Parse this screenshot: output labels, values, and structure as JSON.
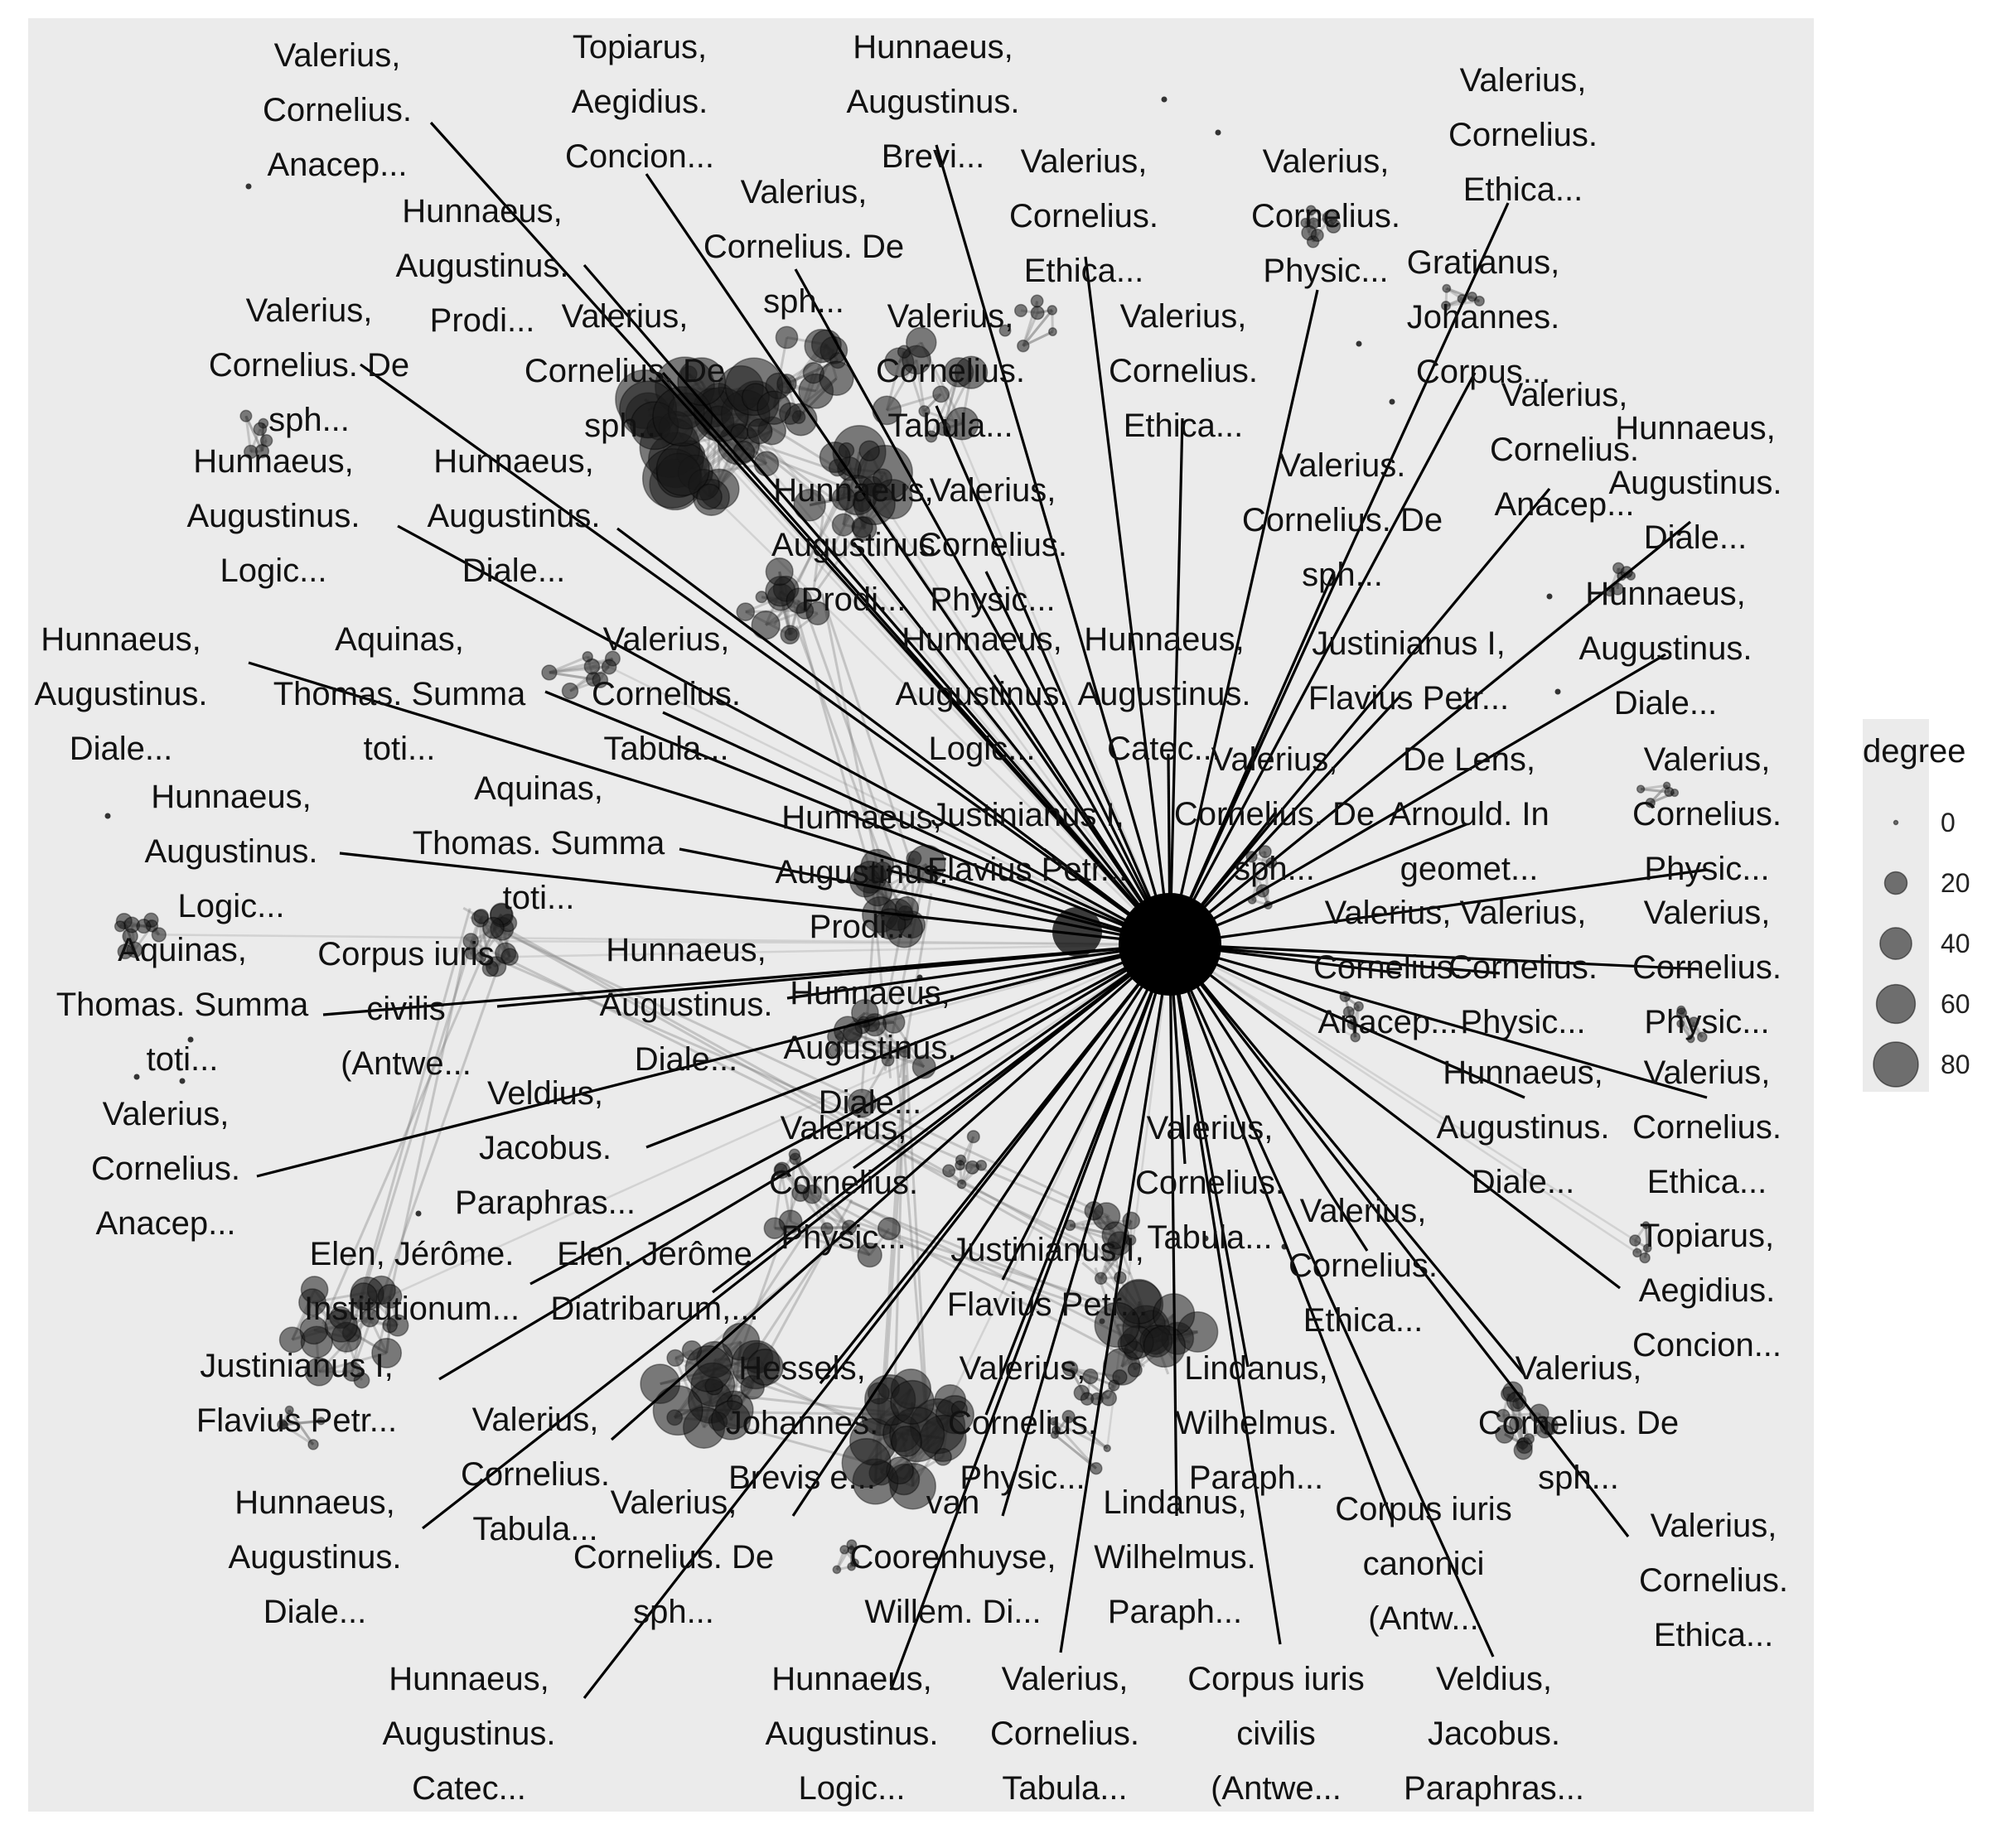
{
  "chart_data": {
    "type": "network",
    "grid": false,
    "legend_placement": "right",
    "legend": {
      "title": "degree",
      "breaks": [
        0,
        20,
        40,
        60,
        80
      ]
    },
    "labels": [
      {
        "lines": [
          "Valerius,",
          "Cornelius.",
          "Anacep..."
        ]
      },
      {
        "lines": [
          "Topiarus,",
          "Aegidius.",
          "Concion..."
        ]
      },
      {
        "lines": [
          "Hunnaeus,",
          "Augustinus.",
          "Brevi..."
        ]
      },
      {
        "lines": [
          "Valerius,",
          "Cornelius.",
          "Ethica..."
        ]
      },
      {
        "lines": [
          "Valerius,",
          "Cornelius.",
          "Physic..."
        ]
      },
      {
        "lines": [
          "Valerius,",
          "Cornelius.",
          "Ethica..."
        ]
      },
      {
        "lines": [
          "Gratianus,",
          "Johannes.",
          "Corpus..."
        ]
      },
      {
        "lines": [
          "Hunnaeus,",
          "Augustinus.",
          "Prodi..."
        ]
      },
      {
        "lines": [
          "Valerius,",
          "Cornelius. De",
          "sph..."
        ]
      },
      {
        "lines": [
          "Valerius,",
          "Cornelius. De",
          "sph..."
        ]
      },
      {
        "lines": [
          "Valerius,",
          "Cornelius. De",
          "sph..."
        ]
      },
      {
        "lines": [
          "Valerius,",
          "Cornelius.",
          "Tabula..."
        ]
      },
      {
        "lines": [
          "Valerius,",
          "Cornelius.",
          "Ethica..."
        ]
      },
      {
        "lines": [
          "Valerius,",
          "Cornelius.",
          "Anacep..."
        ]
      },
      {
        "lines": [
          "Hunnaeus,",
          "Augustinus.",
          "Diale..."
        ]
      },
      {
        "lines": [
          "Hunnaeus,",
          "Augustinus.",
          "Logic..."
        ]
      },
      {
        "lines": [
          "Hunnaeus,",
          "Augustinus.",
          "Diale..."
        ]
      },
      {
        "lines": [
          "Hunnaeus,",
          "Augustinus",
          "Prodi..."
        ]
      },
      {
        "lines": [
          "Valerius,",
          "Cornelius.",
          "Physic..."
        ]
      },
      {
        "lines": [
          "Valerius.",
          "Cornelius. De",
          "sph..."
        ]
      },
      {
        "lines": [
          "Hunnaeus,",
          "Augustinus.",
          "Diale..."
        ]
      },
      {
        "lines": [
          "Hunnaeus,",
          "Augustinus.",
          "Diale..."
        ]
      },
      {
        "lines": [
          "Aquinas,",
          "Thomas. Summa",
          "toti..."
        ]
      },
      {
        "lines": [
          "Valerius,",
          "Cornelius.",
          "Tabula..."
        ]
      },
      {
        "lines": [
          "Hunnaeus,",
          "Augustinus.",
          "Logic..."
        ]
      },
      {
        "lines": [
          "Hunnaeus,",
          "Augustinus.",
          "Catec..."
        ]
      },
      {
        "lines": [
          "Justinianus I,",
          "Flavius Petr..."
        ]
      },
      {
        "lines": [
          "Valerius,",
          "Cornelius. De",
          "sph..."
        ]
      },
      {
        "lines": [
          "De Lens,",
          "Arnould. In",
          "geomet..."
        ]
      },
      {
        "lines": [
          "Valerius,",
          "Cornelius.",
          "Physic..."
        ]
      },
      {
        "lines": [
          "Hunnaeus,",
          "Augustinus.",
          "Logic..."
        ]
      },
      {
        "lines": [
          "Aquinas,",
          "Thomas. Summa",
          "toti..."
        ]
      },
      {
        "lines": [
          "Hunnaeus,",
          "Augustinus.",
          "Prodi..."
        ]
      },
      {
        "lines": [
          "Justinianus I,",
          "Flavius Petr..."
        ]
      },
      {
        "lines": [
          "Valerius,",
          "Cornelius.",
          "Anacep..."
        ]
      },
      {
        "lines": [
          "Valerius,",
          "Cornelius.",
          "Physic..."
        ]
      },
      {
        "lines": [
          "Valerius,",
          "Cornelius.",
          "Physic..."
        ]
      },
      {
        "lines": [
          "Aquinas,",
          "Thomas. Summa",
          "toti..."
        ]
      },
      {
        "lines": [
          "Corpus iuris",
          "civilis",
          "(Antwe..."
        ]
      },
      {
        "lines": [
          "Hunnaeus,",
          "Augustinus.",
          "Diale..."
        ]
      },
      {
        "lines": [
          "Hunnaeus,",
          "Augustinus.",
          "Diale..."
        ]
      },
      {
        "lines": [
          "Hunnaeus,",
          "Augustinus.",
          "Diale..."
        ]
      },
      {
        "lines": [
          "Valerius,",
          "Cornelius.",
          "Ethica..."
        ]
      },
      {
        "lines": [
          "Valerius,",
          "Cornelius.",
          "Anacep..."
        ]
      },
      {
        "lines": [
          "Veldius,",
          "Jacobus.",
          "Paraphras..."
        ]
      },
      {
        "lines": [
          "Valerius,",
          "Cornelius.",
          "Physic..."
        ]
      },
      {
        "lines": [
          "Valerius,",
          "Cornelius.",
          "Tabula..."
        ]
      },
      {
        "lines": [
          "Valerius,",
          "Cornelius.",
          "Ethica..."
        ]
      },
      {
        "lines": [
          "Topiarus,",
          "Aegidius.",
          "Concion..."
        ]
      },
      {
        "lines": [
          "Elen, Jérôme.",
          "Institutionum..."
        ]
      },
      {
        "lines": [
          "Elen, Jérôme",
          "Diatribarum,..."
        ]
      },
      {
        "lines": [
          "Justinianus I,",
          "Flavius Petr..."
        ]
      },
      {
        "lines": [
          "Justinianus I,",
          "Flavius Petr..."
        ]
      },
      {
        "lines": [
          "Valerius,",
          "Cornelius.",
          "Tabula..."
        ]
      },
      {
        "lines": [
          "Valerius,",
          "Cornelius.",
          "Physic..."
        ]
      },
      {
        "lines": [
          "Lindanus,",
          "Wilhelmus.",
          "Paraph..."
        ]
      },
      {
        "lines": [
          "Hessels,",
          "Johannes.",
          "Brevis e..."
        ]
      },
      {
        "lines": [
          "Valerius,",
          "Cornelius. De",
          "sph..."
        ]
      },
      {
        "lines": [
          "Hunnaeus,",
          "Augustinus.",
          "Diale..."
        ]
      },
      {
        "lines": [
          "Valerius,",
          "Cornelius. De",
          "sph..."
        ]
      },
      {
        "lines": [
          "van",
          "Coorenhuyse,",
          "Willem. Di..."
        ]
      },
      {
        "lines": [
          "Lindanus,",
          "Wilhelmus.",
          "Paraph..."
        ]
      },
      {
        "lines": [
          "Corpus iuris",
          "canonici",
          "(Antw..."
        ]
      },
      {
        "lines": [
          "Valerius,",
          "Cornelius.",
          "Ethica..."
        ]
      },
      {
        "lines": [
          "Hunnaeus,",
          "Augustinus.",
          "Catec..."
        ]
      },
      {
        "lines": [
          "Hunnaeus,",
          "Augustinus.",
          "Logic..."
        ]
      },
      {
        "lines": [
          "Valerius,",
          "Cornelius.",
          "Tabula..."
        ]
      },
      {
        "lines": [
          "Corpus iuris",
          "civilis",
          "(Antwe..."
        ]
      },
      {
        "lines": [
          "Veldius,",
          "Jacobus.",
          "Paraphras..."
        ]
      }
    ]
  }
}
